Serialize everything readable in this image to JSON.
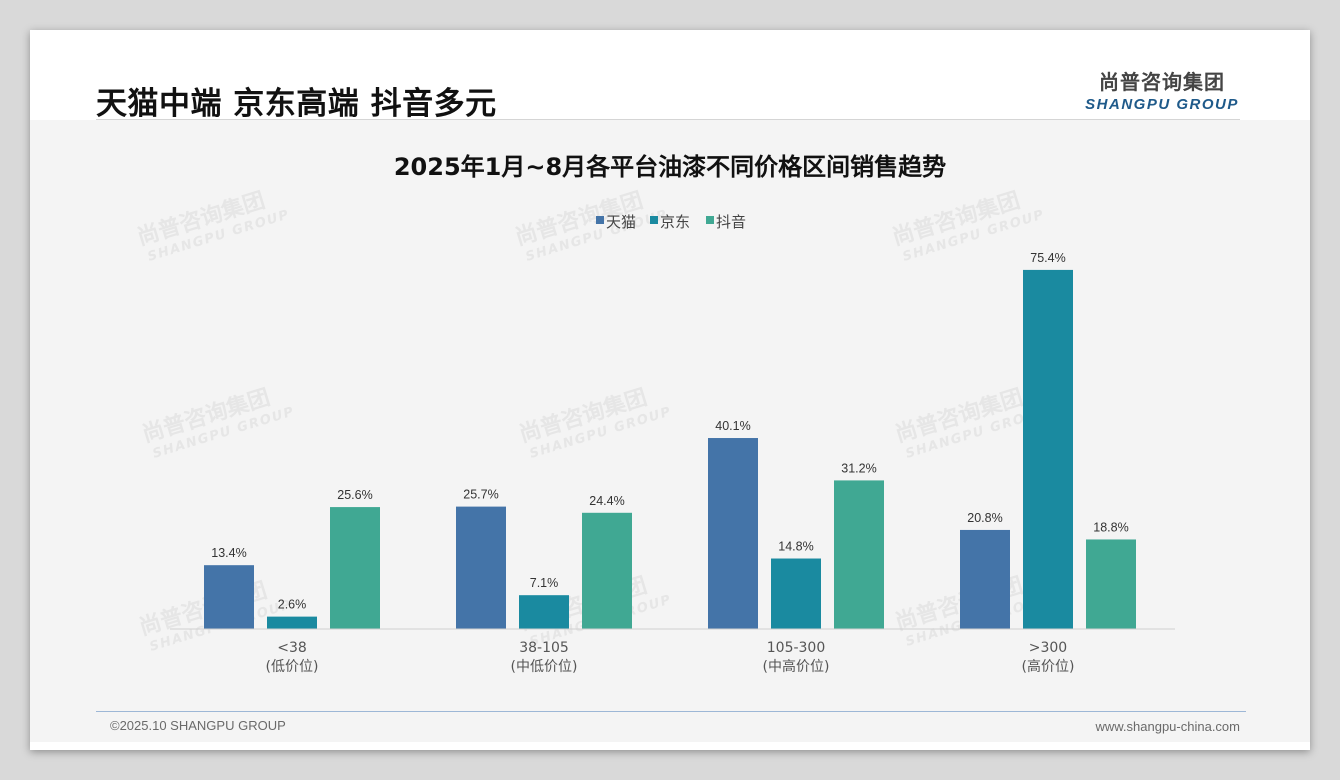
{
  "page": {
    "headline": "天猫中端 京东高端 抖音多元",
    "logo": {
      "cn": "尚普咨询集团",
      "en": "SHANGPU GROUP"
    },
    "footer_left": "©2025.10 SHANGPU GROUP",
    "footer_right": "www.shangpu-china.com",
    "watermark": {
      "cn": "尚普咨询集团",
      "en": "SHANGPU GROUP"
    }
  },
  "colors": {
    "tmall": "#4474a8",
    "jd": "#1a8aa0",
    "douyin": "#40a893",
    "background": "#f4f4f4"
  },
  "chart_data": {
    "type": "bar",
    "title": "2025年1月~8月各平台油漆不同价格区间销售趋势",
    "categories": [
      "<38",
      "38-105",
      "105-300",
      ">300"
    ],
    "category_sublabels": [
      "(低价位)",
      "(中低价位)",
      "(中高价位)",
      "(高价位)"
    ],
    "series": [
      {
        "name": "天猫",
        "values": [
          13.4,
          25.7,
          40.1,
          20.8
        ],
        "labels": [
          "13.4%",
          "25.7%",
          "40.1%",
          "20.8%"
        ]
      },
      {
        "name": "京东",
        "values": [
          2.6,
          7.1,
          14.8,
          75.4
        ],
        "labels": [
          "2.6%",
          "7.1%",
          "14.8%",
          "75.4%"
        ]
      },
      {
        "name": "抖音",
        "values": [
          25.6,
          24.4,
          31.2,
          18.8
        ],
        "labels": [
          "25.6%",
          "24.4%",
          "31.2%",
          "18.8%"
        ]
      }
    ],
    "legend_position": "top-center",
    "ylim": [
      0,
      80
    ],
    "unit": "%",
    "grid": false,
    "xlabel": "",
    "ylabel": ""
  }
}
